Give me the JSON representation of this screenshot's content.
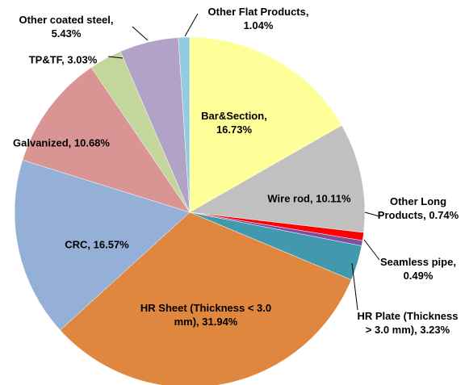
{
  "chart_data": {
    "type": "pie",
    "values": [
      16.73,
      10.11,
      0.74,
      0.49,
      3.23,
      31.94,
      16.57,
      10.68,
      3.03,
      5.43,
      1.04
    ],
    "value_labels": [
      "Bar&Section, 16.73%",
      "Wire rod, 10.11%",
      "Other Long Products, 0.74%",
      "Seamless pipe, 0.49%",
      "HR Plate (Thickness > 3.0 mm), 3.23%",
      "HR Sheet (Thickness < 3.0 mm), 31.94%",
      "CRC, 16.57%",
      "Galvanized, 10.68%",
      "TP&TF, 3.03%",
      "Other coated steel, 5.43%",
      "Other Flat Products, 1.04%"
    ],
    "colors": [
      "#ffff99",
      "#c0c0c0",
      "#ff0000",
      "#7f4fa0",
      "#4299ad",
      "#e0873f",
      "#95b0d6",
      "#d99593",
      "#c3d69b",
      "#b2a2c7",
      "#93ccdc"
    ]
  }
}
